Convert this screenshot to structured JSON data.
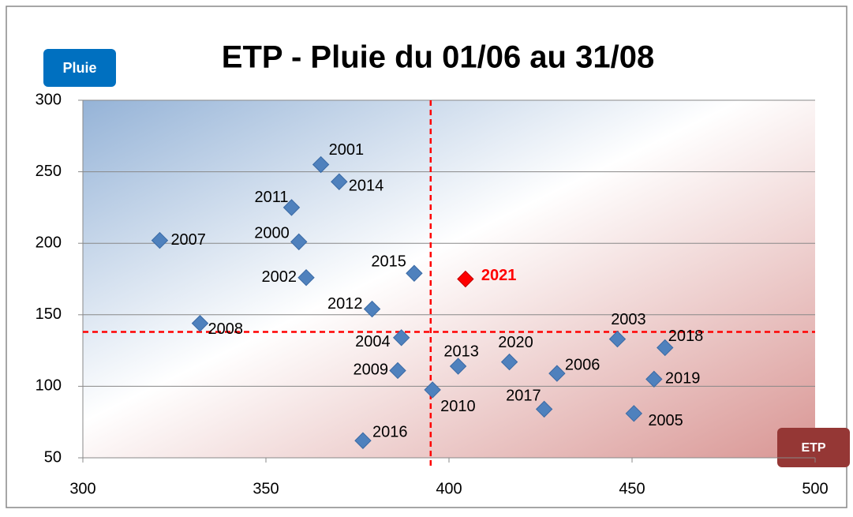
{
  "chart_data": {
    "type": "scatter",
    "title": "ETP - Pluie du 01/06 au 31/08",
    "x_label": "ETP",
    "y_label": "Pluie",
    "color": "#4f81bd",
    "points": [
      {
        "label": "2007",
        "x": 321,
        "y": 202
      },
      {
        "label": "2008",
        "x": 332,
        "y": 144
      },
      {
        "label": "2011",
        "x": 357,
        "y": 225
      },
      {
        "label": "2000",
        "x": 359,
        "y": 201
      },
      {
        "label": "2001",
        "x": 365,
        "y": 255
      },
      {
        "label": "2014",
        "x": 370,
        "y": 243
      },
      {
        "label": "2002",
        "x": 361,
        "y": 176
      },
      {
        "label": "2012",
        "x": 379,
        "y": 154
      },
      {
        "label": "2015",
        "x": 390.5,
        "y": 179
      },
      {
        "label": "2021",
        "x": 404.5,
        "y": 175,
        "color": "#ff0000"
      },
      {
        "label": "2004",
        "x": 387,
        "y": 134
      },
      {
        "label": "2009",
        "x": 386,
        "y": 111
      },
      {
        "label": "2010",
        "x": 395.5,
        "y": 97.5
      },
      {
        "label": "2016",
        "x": 376.5,
        "y": 62
      },
      {
        "label": "2013",
        "x": 402.5,
        "y": 114
      },
      {
        "label": "2020",
        "x": 416.5,
        "y": 117
      },
      {
        "label": "2006",
        "x": 429.5,
        "y": 109
      },
      {
        "label": "2017",
        "x": 426,
        "y": 84
      },
      {
        "label": "2003",
        "x": 446,
        "y": 133
      },
      {
        "label": "2018",
        "x": 459,
        "y": 127
      },
      {
        "label": "2019",
        "x": 456,
        "y": 105
      },
      {
        "label": "2005",
        "x": 450.5,
        "y": 81
      }
    ],
    "ref_x": 395,
    "ref_y": 138,
    "ref_color": "#ff0000",
    "xlim": [
      300,
      500
    ],
    "xticks": [
      300,
      350,
      400,
      450,
      500
    ],
    "ylim": [
      50,
      300
    ],
    "yticks": [
      50,
      100,
      150,
      200,
      250,
      300
    ],
    "grid": true
  }
}
